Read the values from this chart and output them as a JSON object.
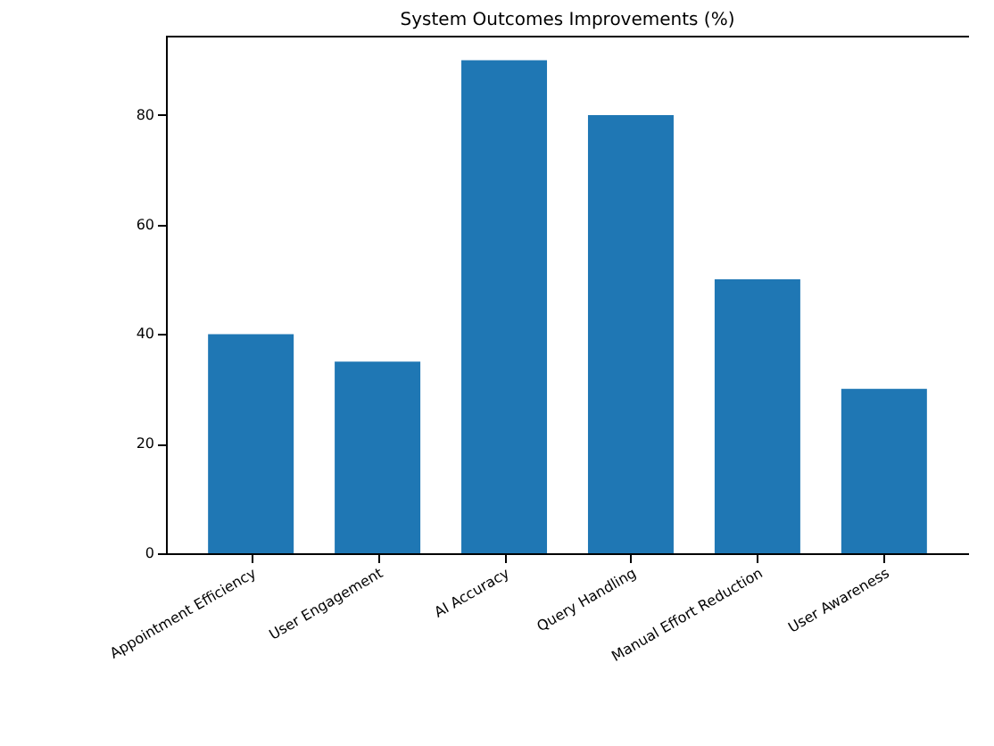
{
  "chart_data": {
    "type": "bar",
    "title": "System Outcomes Improvements (%)",
    "categories": [
      "Appointment Efficiency",
      "User Engagement",
      "AI Accuracy",
      "Query Handling",
      "Manual Effort Reduction",
      "User Awareness"
    ],
    "values": [
      40,
      35,
      90,
      80,
      50,
      30
    ],
    "color": "#1f77b4",
    "ylim": [
      0,
      94.5
    ],
    "yticks": [
      0,
      20,
      40,
      60,
      80
    ],
    "grid": false
  }
}
